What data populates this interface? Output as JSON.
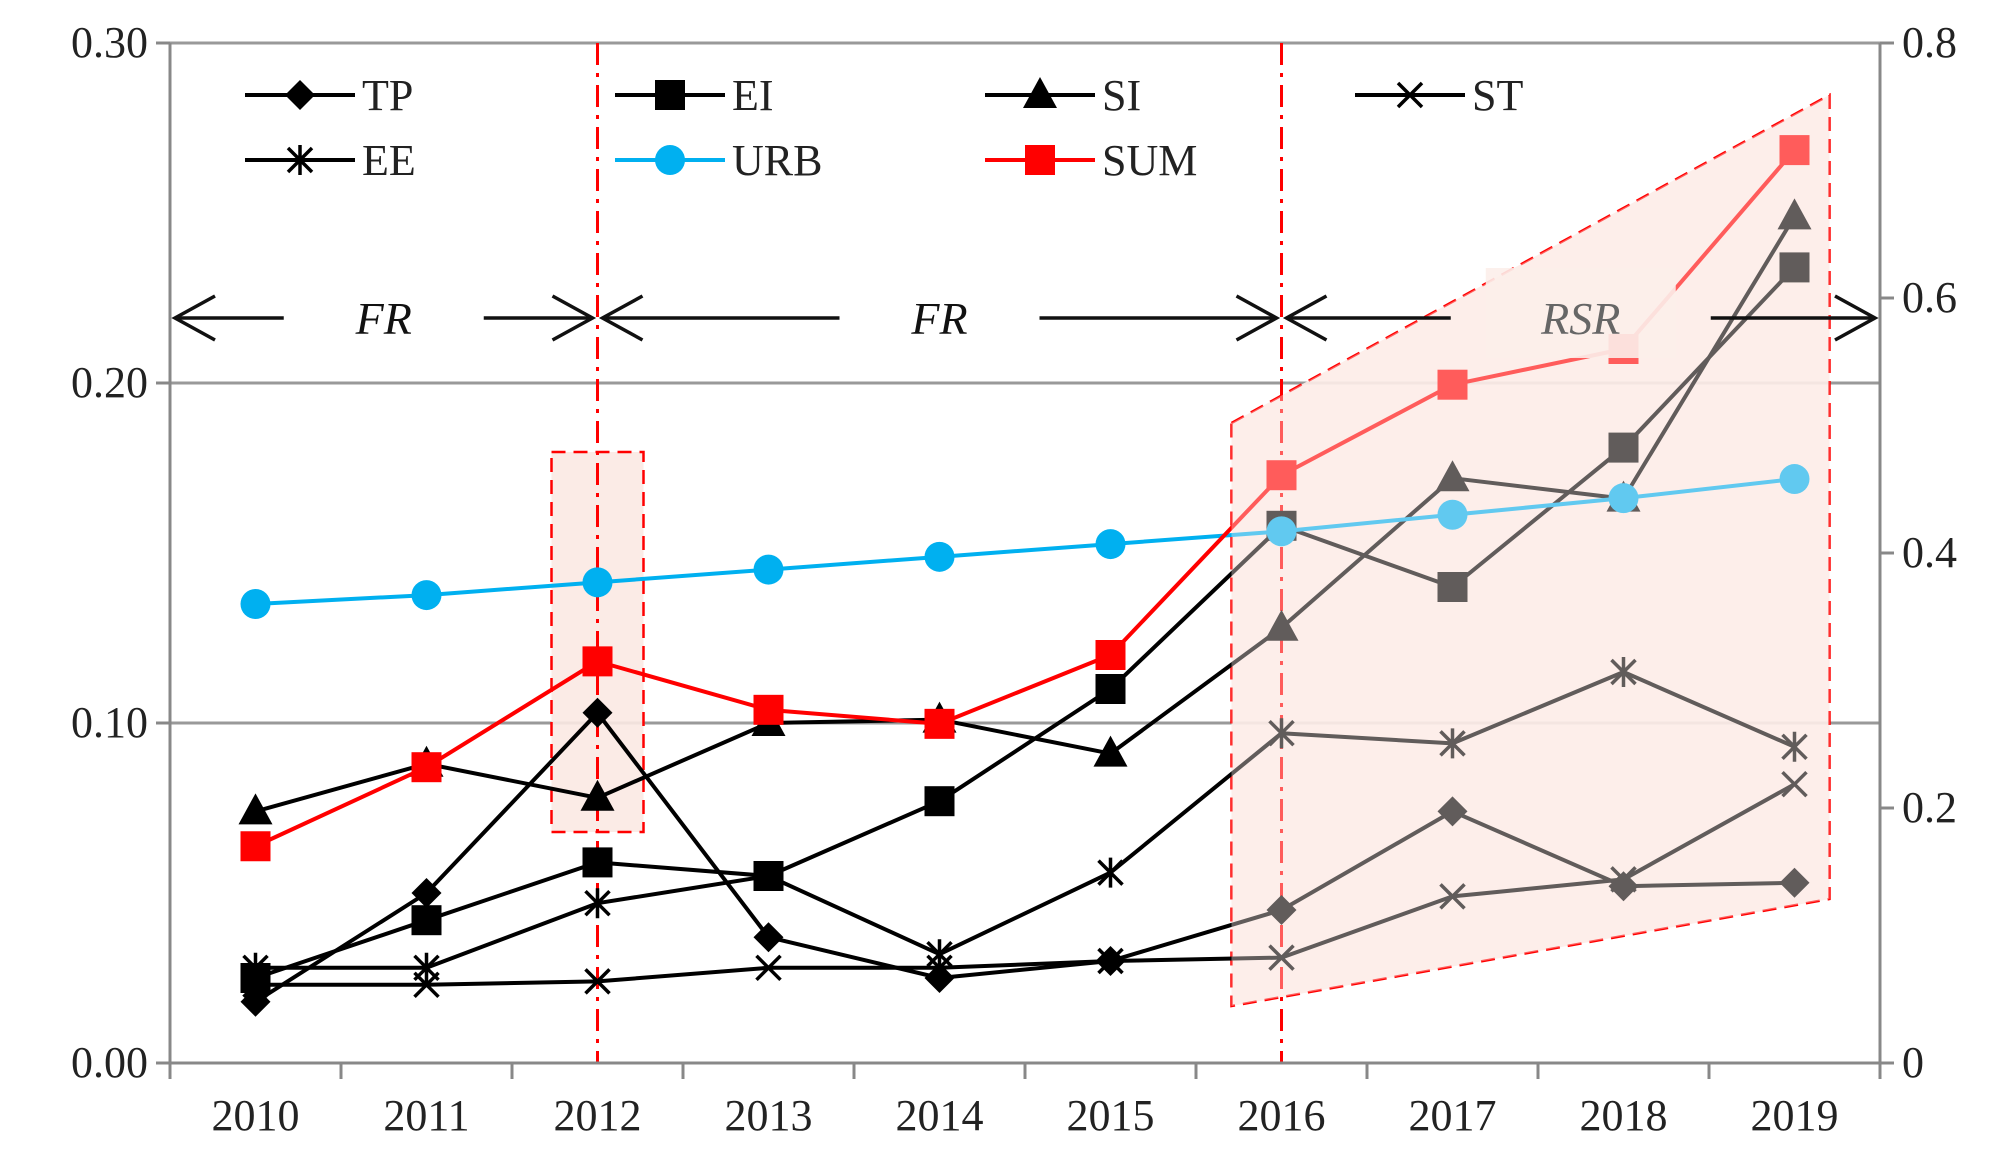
{
  "chart_data": {
    "type": "line",
    "title": "",
    "xlabel": "",
    "ylabel": "",
    "x": [
      "2010",
      "2011",
      "2012",
      "2013",
      "2014",
      "2015",
      "2016",
      "2017",
      "2018",
      "2019"
    ],
    "ylim": [
      0,
      0.3
    ],
    "y_ticks": [
      "0.00",
      "0.10",
      "0.20",
      "0.30"
    ],
    "y2lim": [
      0,
      0.8
    ],
    "y2_ticks": [
      "0",
      "0.2",
      "0.4",
      "0.6",
      "0.8"
    ],
    "grid": "horizontal",
    "series": [
      {
        "name": "TP",
        "axis": "left",
        "marker": "diamond",
        "color": "#000000",
        "values": [
          0.018,
          0.05,
          0.103,
          0.037,
          0.025,
          0.03,
          0.045,
          0.074,
          0.052,
          0.053
        ]
      },
      {
        "name": "EI",
        "axis": "left",
        "marker": "square",
        "color": "#000000",
        "values": [
          0.025,
          0.042,
          0.059,
          0.055,
          0.077,
          0.11,
          0.158,
          0.14,
          0.181,
          0.234
        ]
      },
      {
        "name": "SI",
        "axis": "left",
        "marker": "triangle",
        "color": "#000000",
        "values": [
          0.074,
          0.088,
          0.078,
          0.1,
          0.101,
          0.091,
          0.128,
          0.172,
          0.166,
          0.249
        ]
      },
      {
        "name": "ST",
        "axis": "left",
        "marker": "x",
        "color": "#000000",
        "values": [
          0.023,
          0.023,
          0.024,
          0.028,
          0.028,
          0.03,
          0.031,
          0.049,
          0.054,
          0.082
        ]
      },
      {
        "name": "EE",
        "axis": "left",
        "marker": "asterisk",
        "color": "#000000",
        "values": [
          0.028,
          0.028,
          0.047,
          0.055,
          0.032,
          0.056,
          0.097,
          0.094,
          0.115,
          0.093
        ]
      },
      {
        "name": "URB",
        "axis": "right",
        "marker": "circle",
        "color": "#00B0F0",
        "values": [
          0.36,
          0.367,
          0.377,
          0.387,
          0.397,
          0.407,
          0.417,
          0.43,
          0.443,
          0.458
        ]
      },
      {
        "name": "SUM",
        "axis": "right",
        "marker": "square",
        "color": "#FF0000",
        "values": [
          0.17,
          0.232,
          0.315,
          0.277,
          0.266,
          0.32,
          0.461,
          0.532,
          0.56,
          0.716
        ]
      }
    ],
    "legend": {
      "placement": "top",
      "entries": [
        "TP",
        "EI",
        "SI",
        "ST",
        "EE",
        "URB",
        "SUM"
      ]
    },
    "annotations": [
      {
        "text": "FR",
        "from": "2010",
        "to": "2012"
      },
      {
        "text": "FR",
        "from": "2012",
        "to": "2016"
      },
      {
        "text": "RSR",
        "from": "2016",
        "to": "2019"
      }
    ],
    "vertical_markers": [
      "2012",
      "2016"
    ]
  }
}
